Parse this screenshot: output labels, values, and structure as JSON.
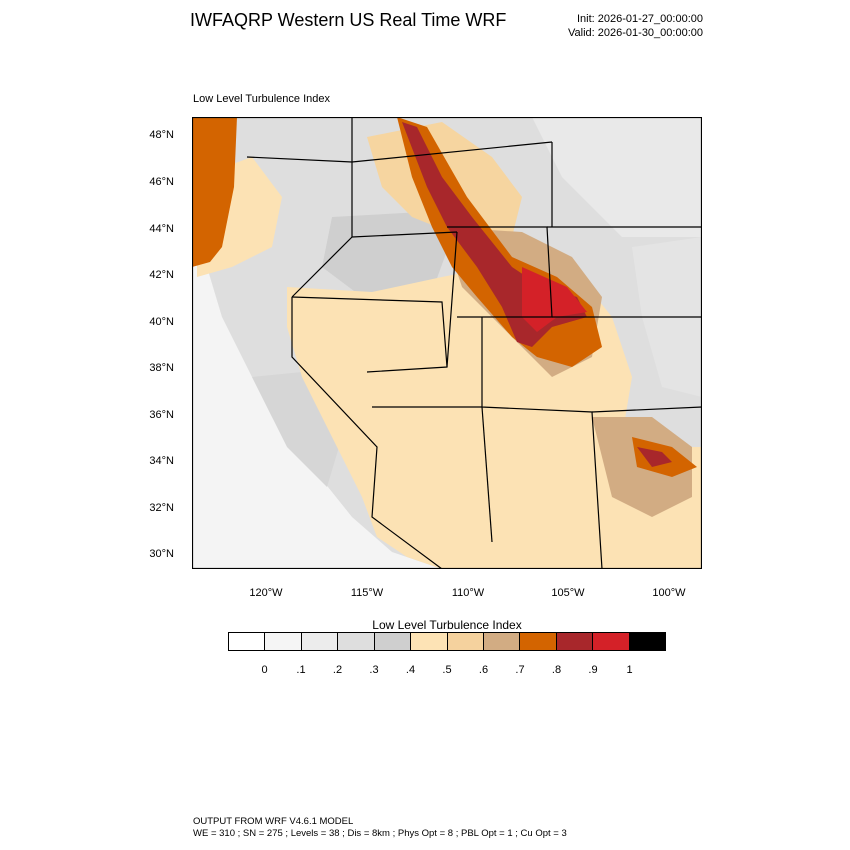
{
  "header": {
    "title": "IWFAQRP Western US Real Time WRF",
    "init": "Init: 2026-01-27_00:00:00",
    "valid": "Valid: 2026-01-30_00:00:00"
  },
  "panel": {
    "subtitle": "Low Level Turbulence Index"
  },
  "map": {
    "projection": "lambert-conformal",
    "lat_labels": [
      "48°N",
      "46°N",
      "44°N",
      "42°N",
      "40°N",
      "38°N",
      "36°N",
      "34°N",
      "32°N",
      "30°N"
    ],
    "lon_labels": [
      "120°W",
      "115°W",
      "110°W",
      "105°W",
      "100°W"
    ],
    "colors": {
      "ocean": "#f4f4f4",
      "low_gray": "#dedede",
      "mid_gray": "#cfcfcf",
      "tan_light": "#fce2b4",
      "tan": "#f6d5a0",
      "brown_light": "#d2ac83",
      "orange": "#d36400",
      "dark_red": "#a8272b",
      "red": "#d42128",
      "border": "#000000"
    }
  },
  "colorbar": {
    "title": "Low Level Turbulence Index",
    "colors": [
      "#ffffff",
      "#f5f5f5",
      "#ececec",
      "#dedede",
      "#cfcfcf",
      "#fde3b5",
      "#f5d29e",
      "#d2ac83",
      "#d36400",
      "#a8272b",
      "#d42128",
      "#000000"
    ],
    "labels": [
      "0",
      ".1",
      ".2",
      ".3",
      ".4",
      ".5",
      ".6",
      ".7",
      ".8",
      ".9",
      "1"
    ]
  },
  "footer": {
    "line1": "OUTPUT FROM WRF V4.6.1 MODEL",
    "line2": "WE = 310 ; SN = 275 ; Levels = 38 ; Dis = 8km ; Phys Opt = 8 ; PBL Opt = 1 ; Cu Opt = 3"
  }
}
